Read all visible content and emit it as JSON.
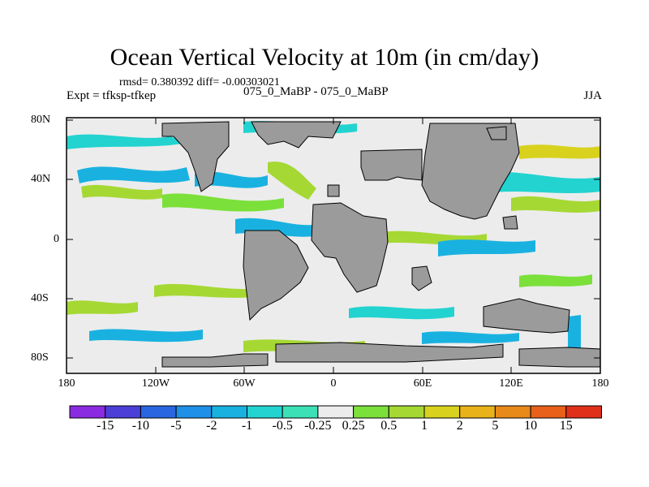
{
  "title": "Ocean Vertical Velocity at 10m (in cm/day)",
  "stats": "rmsd= 0.380392 diff= -0.00303021",
  "experiment": "Expt = tfksp-tfkep",
  "case_label": "075_0_MaBP - 075_0_MaBP",
  "season": "JJA",
  "axes": {
    "lat_labels": [
      "80N",
      "40N",
      "0",
      "40S",
      "80S"
    ],
    "lon_labels": [
      "180",
      "120W",
      "60W",
      "0",
      "60E",
      "120E",
      "180"
    ]
  },
  "colorbar": {
    "labels": [
      "-15",
      "-10",
      "-5",
      "-2",
      "-1",
      "-0.5",
      "-0.25",
      "0.25",
      "0.5",
      "1",
      "2",
      "5",
      "10",
      "15"
    ],
    "colors": [
      "#8a2be2",
      "#4b3fd8",
      "#2a66e0",
      "#1e90e8",
      "#19b2e0",
      "#22d3d0",
      "#3be0b6",
      "#ececec",
      "#7be03a",
      "#a6d833",
      "#d8d21e",
      "#e8b21a",
      "#e88a1a",
      "#e8601a",
      "#e0301a"
    ]
  },
  "colors": {
    "land": "#9b9b9b",
    "near_zero": "#ececec"
  }
}
